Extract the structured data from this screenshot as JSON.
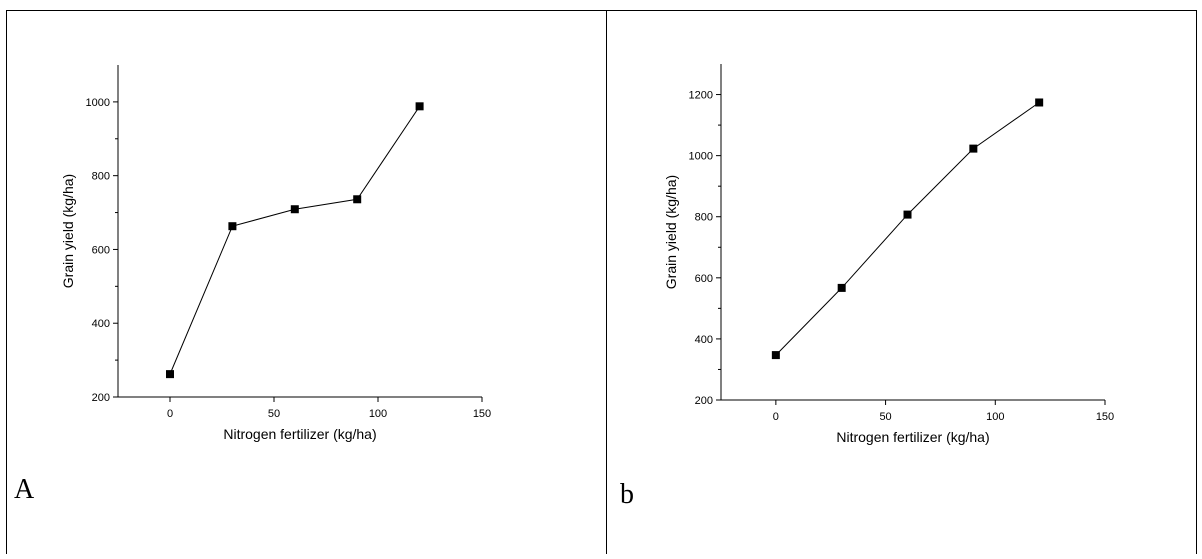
{
  "chart_data": [
    {
      "type": "line",
      "panel_label": "A",
      "xlabel": "Nitrogen fertilizer (kg/ha)",
      "ylabel": "Grain yield (kg/ha)",
      "x": [
        0,
        30,
        60,
        90,
        120
      ],
      "values": [
        262,
        663,
        709,
        736,
        988
      ],
      "color": "#000000",
      "xlim": [
        -25,
        150
      ],
      "xticks": [
        0,
        50,
        100,
        150
      ],
      "ylim": [
        200,
        1100
      ],
      "yticks": [
        200,
        400,
        600,
        800,
        1000
      ]
    },
    {
      "type": "line",
      "panel_label": "b",
      "xlabel": "Nitrogen fertilizer (kg/ha)",
      "ylabel": "Grain yield (kg/ha)",
      "x": [
        0,
        30,
        60,
        90,
        120
      ],
      "values": [
        347,
        567,
        807,
        1023,
        1174
      ],
      "color": "#000000",
      "xlim": [
        -25,
        150
      ],
      "xticks": [
        0,
        50,
        100,
        150
      ],
      "ylim": [
        200,
        1300
      ],
      "yticks": [
        200,
        400,
        600,
        800,
        1000,
        1200
      ]
    }
  ]
}
